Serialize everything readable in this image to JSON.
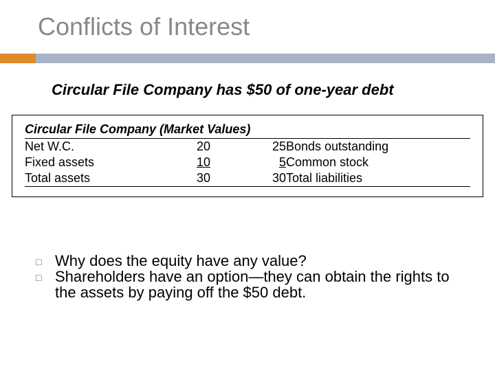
{
  "title": "Conflicts of Interest",
  "subtitle": "Circular File Company has $50 of one-year debt",
  "accent": {
    "orange": "#e08a2b",
    "gray": "#a7b4c4"
  },
  "table": {
    "title": "Circular File Company (Market Values)",
    "rows": [
      {
        "left_label": "Net W.C.",
        "left_val": "20",
        "right_val": "25",
        "right_label": "Bonds outstanding",
        "underline_left": false,
        "underline_right": false
      },
      {
        "left_label": "Fixed assets",
        "left_val": "10",
        "right_val": "5",
        "right_label": "Common stock",
        "underline_left": true,
        "underline_right": true
      },
      {
        "left_label": "Total assets",
        "left_val": "30",
        "right_val": "30",
        "right_label": "Total liabilities",
        "underline_left": false,
        "underline_right": false
      }
    ]
  },
  "bullets": [
    "Why does the equity have any value?",
    "Shareholders have an option—they can obtain the rights to the assets by paying off the $50 debt."
  ]
}
